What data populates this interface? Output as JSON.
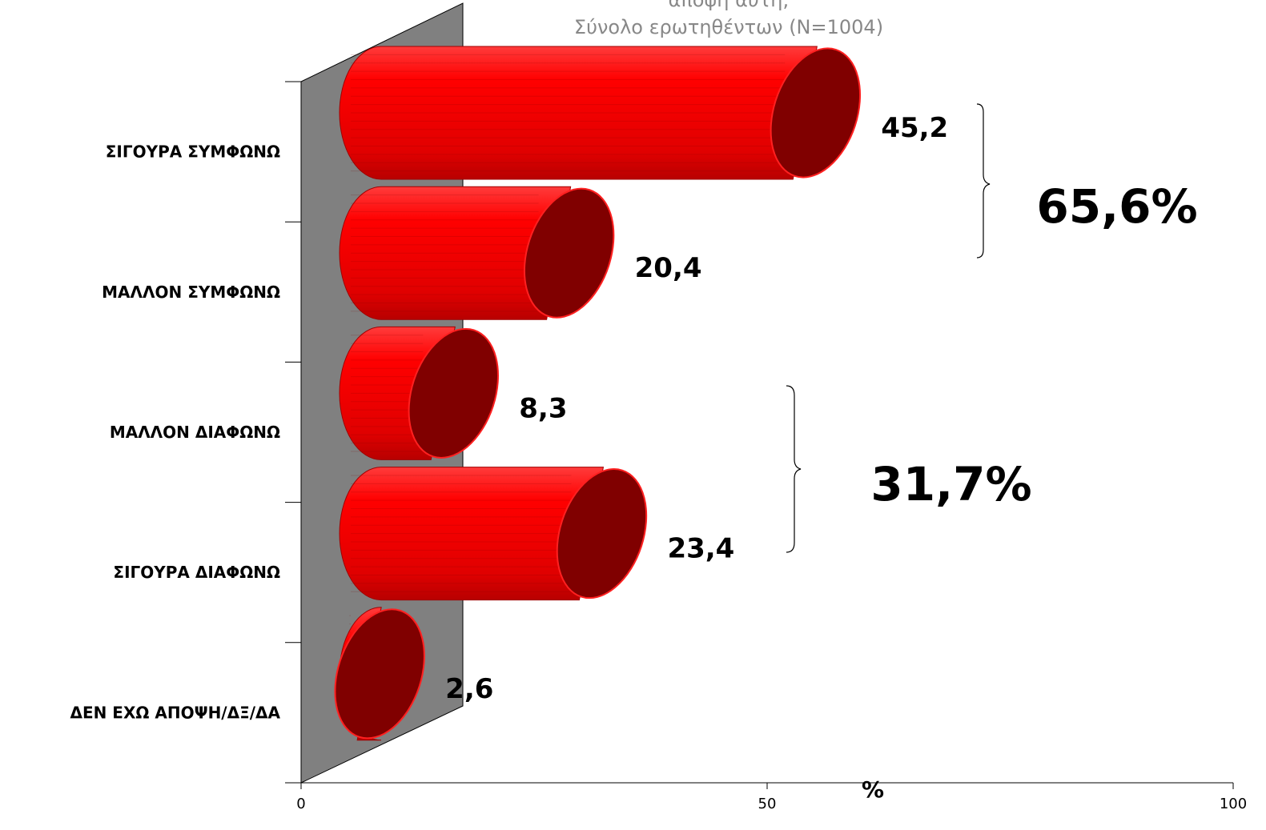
{
  "chart_data": {
    "type": "bar",
    "orientation": "horizontal",
    "title_lines": [
      "αποψη αυτή;",
      "Σύνολο ερωτηθέντων (N=1004)"
    ],
    "categories": [
      "ΣΙΓΟΥΡΑ ΣΥΜΦΩΝΩ",
      "ΜΑΛΛΟΝ ΣΥΜΦΩΝΩ",
      "ΜΑΛΛΟΝ ΔΙΑΦΩΝΩ",
      "ΣΙΓΟΥΡΑ ΔΙΑΦΩΝΩ",
      "ΔΕΝ ΕΧΩ ΑΠΟΨΗ/ΔΞ/ΔΑ"
    ],
    "values": [
      45.2,
      20.4,
      8.3,
      23.4,
      2.6
    ],
    "value_labels": [
      "45,2",
      "20,4",
      "8,3",
      "23,4",
      "2,6"
    ],
    "xlabel": "%",
    "xlim": [
      0,
      100
    ],
    "xticks": [
      "0",
      "50",
      "100"
    ],
    "groups": [
      {
        "label": "65,6%",
        "categories": [
          0,
          1
        ]
      },
      {
        "label": "31,7%",
        "categories": [
          2,
          3
        ]
      }
    ],
    "colors": {
      "bar_body": "#ff0000",
      "bar_cap": "#800000",
      "back_wall": "#808080",
      "title": "#888888"
    },
    "grid": false,
    "legend": "none"
  }
}
